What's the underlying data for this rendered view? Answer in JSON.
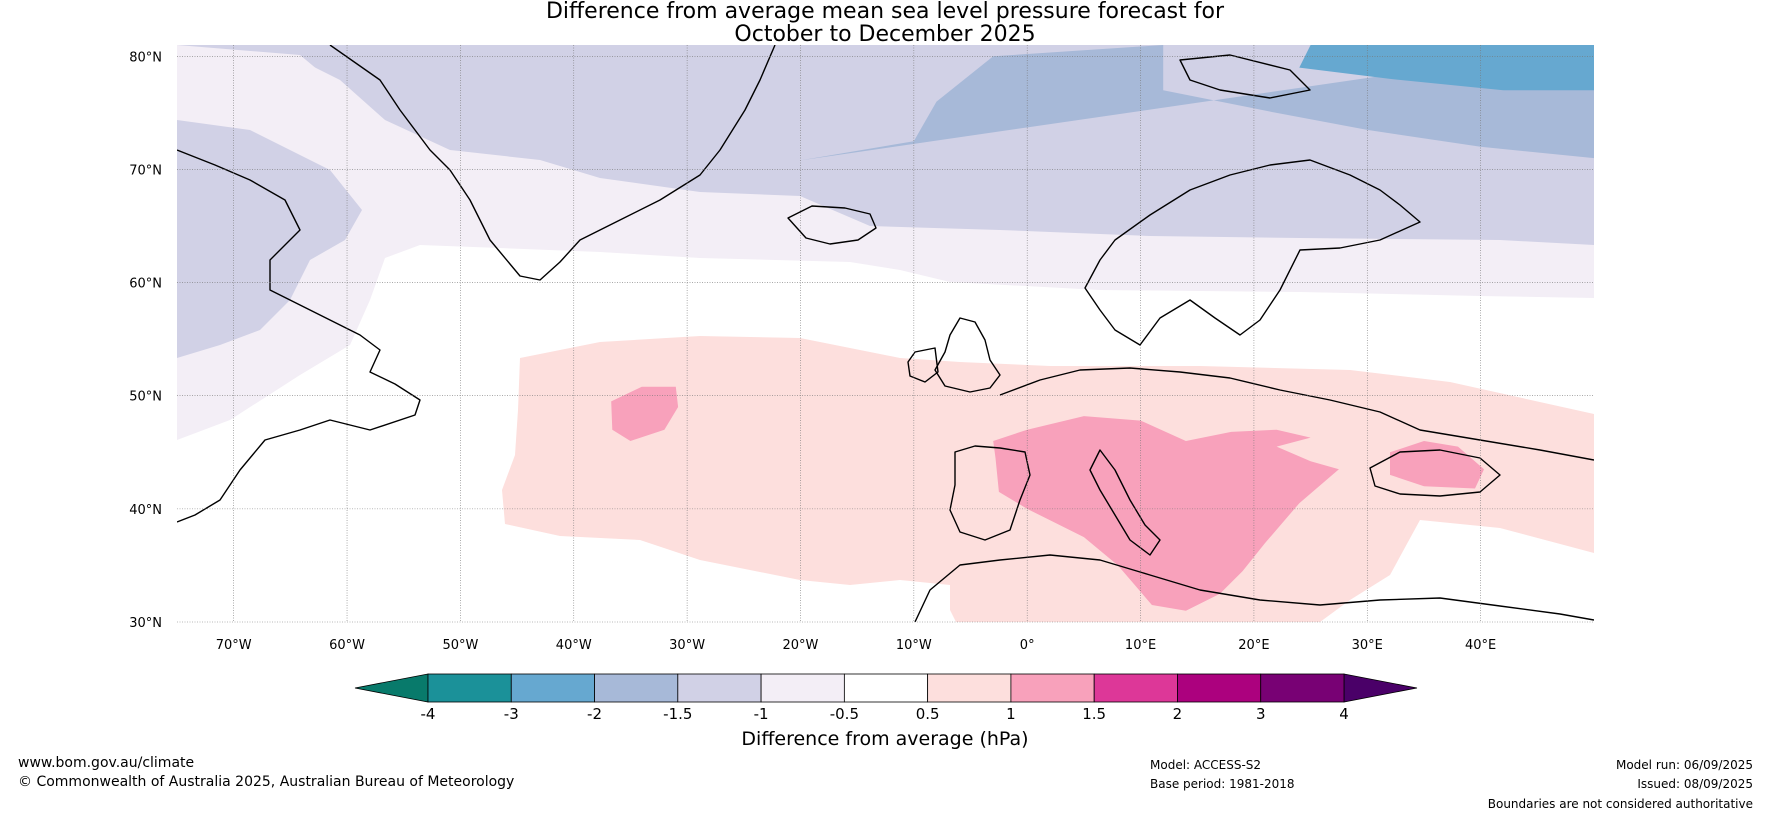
{
  "title": {
    "line1": "Difference from average mean sea level pressure forecast for",
    "line2": "October to December 2025"
  },
  "map": {
    "projection": "equirectangular",
    "lon_range": [
      -75,
      50
    ],
    "lat_range": [
      30,
      81
    ],
    "lon_ticks": [
      {
        "value": -70,
        "label": "70°W"
      },
      {
        "value": -60,
        "label": "60°W"
      },
      {
        "value": -50,
        "label": "50°W"
      },
      {
        "value": -40,
        "label": "40°W"
      },
      {
        "value": -30,
        "label": "30°W"
      },
      {
        "value": -20,
        "label": "20°W"
      },
      {
        "value": -10,
        "label": "10°W"
      },
      {
        "value": 0,
        "label": "0°"
      },
      {
        "value": 10,
        "label": "10°E"
      },
      {
        "value": 20,
        "label": "20°E"
      },
      {
        "value": 30,
        "label": "30°E"
      },
      {
        "value": 40,
        "label": "40°E"
      }
    ],
    "lat_ticks": [
      {
        "value": 80,
        "label": "80°N"
      },
      {
        "value": 70,
        "label": "70°N"
      },
      {
        "value": 60,
        "label": "60°N"
      },
      {
        "value": 50,
        "label": "50°N"
      },
      {
        "value": 40,
        "label": "40°N"
      },
      {
        "value": 30,
        "label": "30°N"
      }
    ],
    "gridlines": true,
    "regions": [
      {
        "bin": "-2 to -1.5",
        "color": "#a7b9d8",
        "lonlat": [
          [
            -20,
            70.8
          ],
          [
            -10,
            72.5
          ],
          [
            -8,
            76
          ],
          [
            -3,
            80
          ],
          [
            12,
            81
          ],
          [
            12,
            77
          ],
          [
            22,
            75
          ],
          [
            30,
            73.5
          ],
          [
            40,
            72
          ],
          [
            50,
            71
          ],
          [
            50,
            81
          ]
        ]
      },
      {
        "bin": "-3 to -2",
        "color": "#66a8d0",
        "lonlat": [
          [
            25,
            81
          ],
          [
            24,
            79
          ],
          [
            32,
            78
          ],
          [
            42,
            77
          ],
          [
            50,
            77
          ],
          [
            50,
            81
          ]
        ]
      },
      {
        "bin": "1 to 1.5",
        "color": "#f8a1bb",
        "lonlat": [
          [
            -36.7,
            49.5
          ],
          [
            -34,
            50.8
          ],
          [
            -31,
            50.8
          ],
          [
            -30.8,
            49
          ],
          [
            -32,
            47
          ],
          [
            -35,
            46
          ],
          [
            -36.6,
            47
          ]
        ]
      },
      {
        "bin": "1 to 1.5",
        "color": "#f8a1bb",
        "lonlat": [
          [
            -3,
            46
          ],
          [
            0,
            47
          ],
          [
            5,
            48.2
          ],
          [
            10,
            47.8
          ],
          [
            14,
            46
          ],
          [
            18,
            46.8
          ],
          [
            22,
            47
          ],
          [
            25,
            46.3
          ],
          [
            22,
            45.5
          ],
          [
            25,
            44.2
          ],
          [
            27.5,
            43.5
          ],
          [
            24,
            40.5
          ],
          [
            21,
            37
          ],
          [
            19,
            34.5
          ],
          [
            17,
            32.5
          ],
          [
            14,
            31
          ],
          [
            11,
            31.5
          ],
          [
            8,
            35
          ],
          [
            5,
            37.5
          ],
          [
            0,
            40
          ],
          [
            -2.5,
            41.5
          ],
          [
            -2.8,
            44.5
          ]
        ]
      },
      {
        "bin": "1 to 1.5",
        "color": "#f8a1bb",
        "lonlat": [
          [
            32,
            45
          ],
          [
            35,
            46
          ],
          [
            38,
            45.5
          ],
          [
            40.3,
            43.5
          ],
          [
            39.5,
            41.8
          ],
          [
            35,
            42
          ],
          [
            32,
            43
          ]
        ]
      }
    ]
  },
  "colorbar": {
    "label": "Difference from average (hPa)",
    "bins": [
      {
        "label": "-4",
        "color": "#1b9199"
      },
      {
        "label": "-3",
        "color": "#66a8d0"
      },
      {
        "label": "-2",
        "color": "#a7b9d8"
      },
      {
        "label": "-1.5",
        "color": "#d1d1e6"
      },
      {
        "label": "-1",
        "color": "#f3eef6"
      },
      {
        "label": "-0.5",
        "color": "#ffffff"
      },
      {
        "label": "0.5",
        "color": "#fddfdd"
      },
      {
        "label": "1",
        "color": "#f8a1bb"
      },
      {
        "label": "1.5",
        "color": "#dd3798"
      },
      {
        "label": "2",
        "color": "#ac017e"
      },
      {
        "label": "3",
        "color": "#780174"
      },
      {
        "label": "4",
        "color": ""
      }
    ],
    "low_extend_color": "#087a6b",
    "high_extend_color": "#4a0068"
  },
  "footer": {
    "website": "www.bom.gov.au/climate",
    "copyright": "© Commonwealth of Australia 2025, Australian Bureau of Meteorology",
    "model": "Model: ACCESS-S2",
    "base_period": "Base period: 1981-2018",
    "model_run": "Model run: 06/09/2025",
    "issued": "Issued: 08/09/2025",
    "disclaimer": "Boundaries are not considered authoritative"
  }
}
